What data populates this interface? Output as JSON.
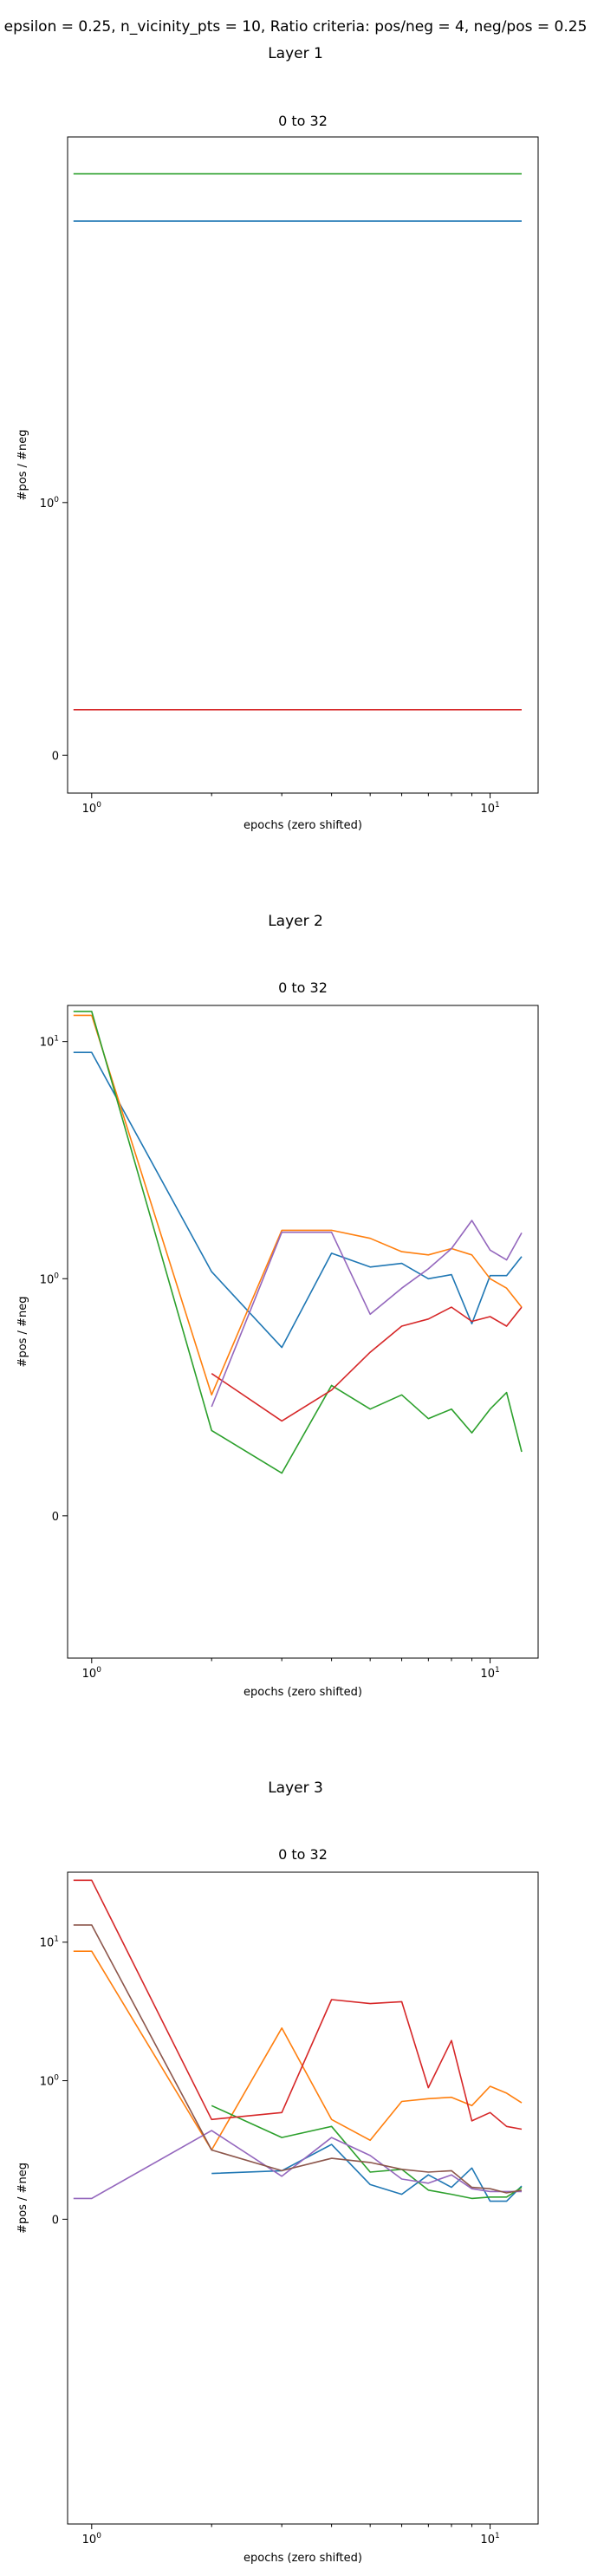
{
  "figure": {
    "suptitle": "epsilon = 0.25, n_vicinity_pts = 10, Ratio criteria: pos/neg = 4, neg/pos = 0.25"
  },
  "colors": {
    "C0": "#1f77b4",
    "C1": "#ff7f0e",
    "C2": "#2ca02c",
    "C3": "#d62728",
    "C4": "#9467bd",
    "C5": "#8c564b"
  },
  "chart_data": [
    {
      "type": "line",
      "layer_title": "Layer 1",
      "title": "0 to 32",
      "xlabel": "epochs (zero shifted)",
      "ylabel": "#pos / #neg",
      "xscale": "log",
      "yscale": "symlog",
      "xlim": [
        0.87,
        13.2
      ],
      "ylim": [
        -0.15,
        28
      ],
      "xticks": [
        {
          "v": 1,
          "label": "10^0"
        },
        {
          "v": 10,
          "label": "10^1"
        }
      ],
      "yticks": [
        {
          "v": 0,
          "label": "0"
        },
        {
          "v": 1,
          "label": "10^0"
        }
      ],
      "series": [
        {
          "color": "C2",
          "x": [
            0.9,
            12
          ],
          "y": [
            20,
            20
          ]
        },
        {
          "color": "C0",
          "x": [
            0.9,
            12
          ],
          "y": [
            13,
            13
          ]
        },
        {
          "color": "C3",
          "x": [
            0.9,
            12
          ],
          "y": [
            0.18,
            0.18
          ]
        }
      ]
    },
    {
      "type": "line",
      "layer_title": "Layer 2",
      "title": "0 to 32",
      "xlabel": "epochs (zero shifted)",
      "ylabel": "#pos / #neg",
      "xscale": "log",
      "yscale": "symlog",
      "xlim": [
        0.87,
        13.2
      ],
      "ylim": [
        -0.6,
        14.2
      ],
      "xticks": [
        {
          "v": 1,
          "label": "10^0"
        },
        {
          "v": 10,
          "label": "10^1"
        }
      ],
      "yticks": [
        {
          "v": 0,
          "label": "0"
        },
        {
          "v": 1,
          "label": "10^0"
        },
        {
          "v": 10,
          "label": "10^1"
        }
      ],
      "series": [
        {
          "color": "C0",
          "x": [
            0.9,
            1,
            2,
            3,
            4,
            5,
            6,
            7,
            8,
            9,
            10,
            11,
            12
          ],
          "y": [
            9.0,
            9.0,
            1.07,
            0.71,
            1.28,
            1.12,
            1.16,
            1.0,
            1.04,
            0.81,
            1.03,
            1.03,
            1.24
          ]
        },
        {
          "color": "C1",
          "x": [
            0.9,
            1,
            2,
            3,
            4,
            5,
            6,
            7,
            8,
            9,
            10,
            11,
            12
          ],
          "y": [
            12.9,
            12.9,
            0.51,
            1.6,
            1.6,
            1.48,
            1.3,
            1.26,
            1.34,
            1.26,
            1.0,
            0.96,
            0.88
          ]
        },
        {
          "color": "C2",
          "x": [
            0.9,
            1,
            2,
            3,
            4,
            5,
            6,
            7,
            8,
            9,
            10,
            11,
            12
          ],
          "y": [
            13.4,
            13.4,
            0.36,
            0.18,
            0.55,
            0.45,
            0.51,
            0.41,
            0.45,
            0.35,
            0.45,
            0.52,
            0.27
          ]
        },
        {
          "color": "C3",
          "x": [
            2,
            3,
            4,
            5,
            6,
            7,
            8,
            9,
            10,
            11,
            12
          ],
          "y": [
            0.6,
            0.4,
            0.53,
            0.69,
            0.8,
            0.83,
            0.88,
            0.82,
            0.84,
            0.8,
            0.88
          ]
        },
        {
          "color": "C4",
          "x": [
            2,
            3,
            4,
            5,
            6,
            7,
            8,
            9,
            10,
            11,
            12
          ],
          "y": [
            0.46,
            1.57,
            1.57,
            0.85,
            0.96,
            1.1,
            1.34,
            1.76,
            1.32,
            1.2,
            1.56
          ]
        }
      ]
    },
    {
      "type": "line",
      "layer_title": "Layer 3",
      "title": "0 to 32",
      "xlabel": "epochs (zero shifted)",
      "ylabel": "#pos / #neg",
      "xscale": "log",
      "yscale": "symlog",
      "xlim": [
        0.87,
        13.2
      ],
      "ylim": [
        -2.2,
        32
      ],
      "xticks": [
        {
          "v": 1,
          "label": "10^0"
        },
        {
          "v": 10,
          "label": "10^1"
        }
      ],
      "yticks": [
        {
          "v": 0,
          "label": "0"
        },
        {
          "v": 1,
          "label": "10^0"
        },
        {
          "v": 10,
          "label": "10^1"
        }
      ],
      "series": [
        {
          "color": "C0",
          "x": [
            2,
            3,
            4,
            5,
            6,
            7,
            8,
            9,
            10,
            11,
            12
          ],
          "y": [
            0.33,
            0.35,
            0.54,
            0.25,
            0.18,
            0.32,
            0.23,
            0.37,
            0.13,
            0.13,
            0.24
          ]
        },
        {
          "color": "C1",
          "x": [
            0.9,
            1,
            2,
            3,
            4,
            5,
            6,
            7,
            8,
            9,
            10,
            11,
            12
          ],
          "y": [
            8.6,
            8.6,
            0.5,
            2.4,
            0.72,
            0.57,
            0.85,
            0.87,
            0.88,
            0.82,
            0.96,
            0.91,
            0.84
          ]
        },
        {
          "color": "C2",
          "x": [
            2,
            3,
            4,
            5,
            6,
            7,
            8,
            9,
            10,
            11,
            12
          ],
          "y": [
            0.82,
            0.59,
            0.67,
            0.34,
            0.36,
            0.21,
            0.18,
            0.15,
            0.16,
            0.16,
            0.23
          ]
        },
        {
          "color": "C3",
          "x": [
            0.9,
            1,
            2,
            3,
            4,
            5,
            6,
            7,
            8,
            9,
            10,
            11,
            12
          ],
          "y": [
            28,
            28,
            0.72,
            0.77,
            3.85,
            3.6,
            3.72,
            0.95,
            1.95,
            0.71,
            0.77,
            0.67,
            0.65
          ]
        },
        {
          "color": "C4",
          "x": [
            0.9,
            1,
            2,
            3,
            4,
            5,
            6,
            7,
            8,
            9,
            10,
            11,
            12
          ],
          "y": [
            0.15,
            0.15,
            0.64,
            0.31,
            0.59,
            0.46,
            0.29,
            0.26,
            0.32,
            0.22,
            0.2,
            0.2,
            0.2
          ]
        },
        {
          "color": "C5",
          "x": [
            0.9,
            1,
            2,
            3,
            4,
            5,
            6,
            7,
            8,
            9,
            10,
            11,
            12
          ],
          "y": [
            13.3,
            13.3,
            0.5,
            0.35,
            0.44,
            0.41,
            0.36,
            0.34,
            0.35,
            0.23,
            0.22,
            0.19,
            0.21
          ]
        }
      ]
    }
  ]
}
